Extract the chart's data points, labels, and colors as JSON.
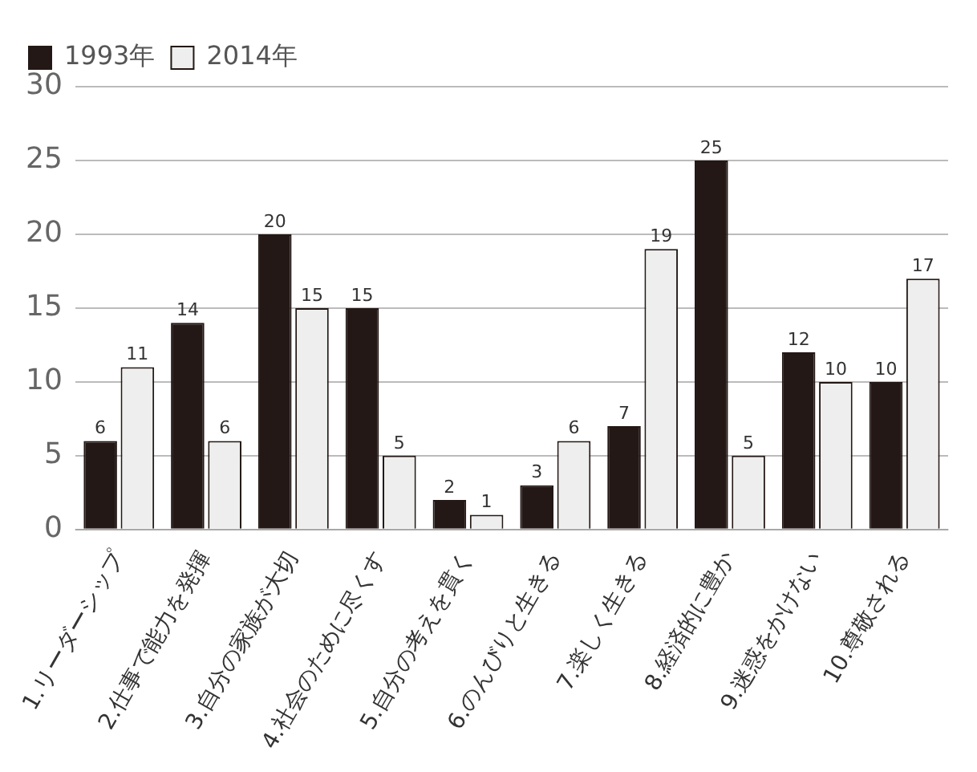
{
  "chart_data": {
    "type": "bar",
    "categories": [
      "1.リーダーシップ",
      "2.仕事で能力を発揮",
      "3.自分の家族が大切",
      "4.社会のために尽くす",
      "5.自分の考えを貫く",
      "6.のんびりと生きる",
      "7.楽しく生きる",
      "8.経済的に豊か",
      "9.迷惑をかけない",
      "10.尊敬される"
    ],
    "series": [
      {
        "name": "1993年",
        "color": "#231815",
        "values": [
          6,
          14,
          20,
          15,
          2,
          3,
          7,
          25,
          12,
          10
        ]
      },
      {
        "name": "2014年",
        "color": "#eeeeee",
        "values": [
          11,
          6,
          15,
          5,
          1,
          6,
          19,
          5,
          10,
          17
        ]
      }
    ],
    "ylim": [
      0,
      30
    ],
    "yticks": [
      0,
      5,
      10,
      15,
      20,
      25,
      30
    ],
    "grid": "y",
    "legend": "top left",
    "data_labels": true
  }
}
